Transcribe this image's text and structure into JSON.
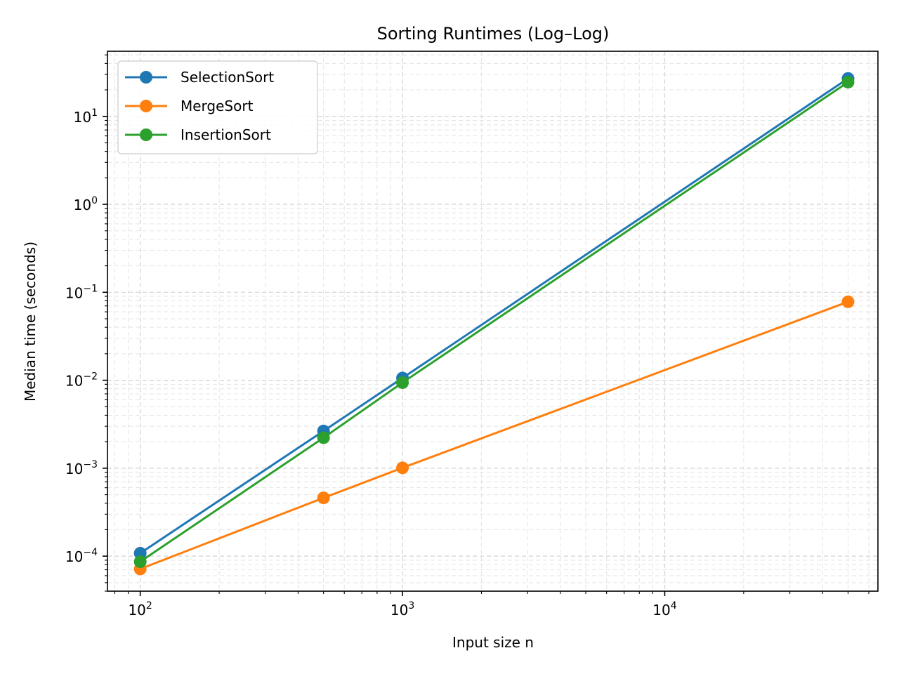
{
  "chart_data": {
    "type": "line",
    "title": "Sorting Runtimes (Log–Log)",
    "xlabel": "Input size n",
    "ylabel": "Median time (seconds)",
    "xscale": "log",
    "yscale": "log",
    "xlim": [
      75,
      65000
    ],
    "ylim": [
      4e-05,
      55
    ],
    "grid": true,
    "legend_position": "top-left",
    "x_ticks": [
      {
        "value": 100,
        "base": "10",
        "exp": "2"
      },
      {
        "value": 1000,
        "base": "10",
        "exp": "3"
      },
      {
        "value": 10000,
        "base": "10",
        "exp": "4"
      }
    ],
    "y_ticks": [
      {
        "value": 0.0001,
        "base": "10",
        "exp": "−4"
      },
      {
        "value": 0.001,
        "base": "10",
        "exp": "−3"
      },
      {
        "value": 0.01,
        "base": "10",
        "exp": "−2"
      },
      {
        "value": 0.1,
        "base": "10",
        "exp": "−1"
      },
      {
        "value": 1,
        "base": "10",
        "exp": "0"
      },
      {
        "value": 10,
        "base": "10",
        "exp": "1"
      }
    ],
    "x": [
      100,
      500,
      1000,
      50000
    ],
    "series": [
      {
        "name": "SelectionSort",
        "color": "#1f77b4",
        "values": [
          0.000108,
          0.00265,
          0.0106,
          27.0
        ]
      },
      {
        "name": "MergeSort",
        "color": "#ff7f0e",
        "values": [
          7.15e-05,
          0.00046,
          0.00101,
          0.078
        ]
      },
      {
        "name": "InsertionSort",
        "color": "#2ca02c",
        "values": [
          8.65e-05,
          0.00222,
          0.0094,
          24.5
        ]
      }
    ]
  }
}
